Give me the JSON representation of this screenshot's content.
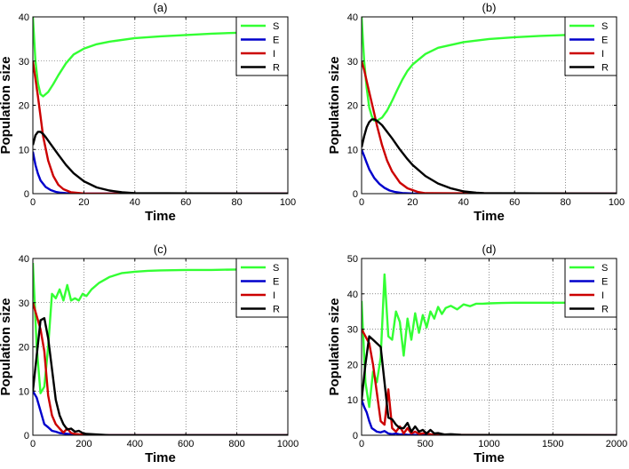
{
  "figure": {
    "background": "#ffffff"
  },
  "series_colors": {
    "S": "#33ff33",
    "E": "#0000cc",
    "I": "#cc0000",
    "R": "#000000"
  },
  "chart_data": [
    {
      "type": "line",
      "title": "(a)",
      "xlabel": "Time",
      "ylabel": "Population size",
      "xlim": [
        0,
        100
      ],
      "ylim": [
        0,
        40
      ],
      "xticks": [
        0,
        20,
        40,
        60,
        80,
        100
      ],
      "yticks": [
        0,
        10,
        20,
        30,
        40
      ],
      "grid": true,
      "legend_position": "top-right",
      "series": [
        {
          "name": "S",
          "x": [
            0,
            1,
            2,
            3,
            4,
            6,
            8,
            10,
            13,
            16,
            20,
            25,
            30,
            40,
            50,
            60,
            70,
            80
          ],
          "y": [
            40,
            30,
            25,
            22.5,
            22,
            23,
            24.8,
            26.8,
            29.5,
            31.5,
            32.8,
            33.8,
            34.4,
            35.2,
            35.6,
            35.9,
            36.2,
            36.4
          ]
        },
        {
          "name": "E",
          "x": [
            0,
            1,
            2,
            3,
            5,
            7,
            9,
            11,
            13,
            16,
            20,
            30,
            100
          ],
          "y": [
            9.5,
            6.5,
            4.5,
            3,
            1.5,
            0.8,
            0.4,
            0.2,
            0.1,
            0.05,
            0,
            0,
            0
          ]
        },
        {
          "name": "I",
          "x": [
            0,
            1,
            2,
            3,
            4,
            6,
            8,
            10,
            12,
            15,
            20,
            25,
            100
          ],
          "y": [
            30,
            26,
            22,
            17.5,
            13,
            7.5,
            4,
            2,
            1,
            0.3,
            0.05,
            0,
            0
          ]
        },
        {
          "name": "R",
          "x": [
            0,
            1,
            2,
            3,
            4,
            5,
            7,
            10,
            13,
            16,
            20,
            25,
            30,
            35,
            40,
            100
          ],
          "y": [
            11,
            13.2,
            14,
            14,
            13.5,
            12.8,
            11.2,
            8.8,
            6.5,
            4.6,
            2.8,
            1.4,
            0.7,
            0.3,
            0.1,
            0
          ]
        }
      ]
    },
    {
      "type": "line",
      "title": "(b)",
      "xlabel": "Time",
      "ylabel": "Population size",
      "xlim": [
        0,
        100
      ],
      "ylim": [
        0,
        40
      ],
      "xticks": [
        0,
        20,
        40,
        60,
        80,
        100
      ],
      "yticks": [
        0,
        10,
        20,
        30,
        40
      ],
      "grid": true,
      "legend_position": "top-right",
      "series": [
        {
          "name": "S",
          "x": [
            0,
            1,
            2,
            3,
            4,
            5,
            6,
            8,
            10,
            12,
            14,
            16,
            18,
            20,
            25,
            30,
            40,
            50,
            60,
            70,
            80,
            100
          ],
          "y": [
            40,
            30,
            24,
            19.5,
            17.5,
            16.5,
            16.5,
            17.2,
            18.8,
            21,
            23.5,
            25.8,
            27.8,
            29.2,
            31.6,
            33,
            34.3,
            35,
            35.4,
            35.7,
            35.9,
            36.2
          ]
        },
        {
          "name": "E",
          "x": [
            0,
            1,
            2,
            3,
            5,
            7,
            9,
            11,
            13,
            16,
            20,
            30,
            100
          ],
          "y": [
            10,
            8.5,
            7,
            5.5,
            3.5,
            2.2,
            1.3,
            0.7,
            0.4,
            0.15,
            0.05,
            0,
            0
          ]
        },
        {
          "name": "I",
          "x": [
            0,
            1,
            2,
            3,
            4,
            5,
            6,
            8,
            10,
            12,
            15,
            18,
            22,
            25,
            100
          ],
          "y": [
            30,
            28,
            25.5,
            23,
            20.5,
            18,
            15.5,
            11,
            7.5,
            5,
            2.5,
            1.2,
            0.4,
            0.1,
            0
          ]
        },
        {
          "name": "R",
          "x": [
            0,
            1,
            2,
            3,
            4,
            5,
            6,
            8,
            10,
            12,
            15,
            18,
            20,
            25,
            30,
            35,
            40,
            45,
            48,
            100
          ],
          "y": [
            10.5,
            13,
            15,
            16.2,
            16.8,
            16.8,
            16.5,
            15.5,
            14,
            12.5,
            10,
            7.8,
            6.5,
            4,
            2.3,
            1.2,
            0.5,
            0.2,
            0.1,
            0
          ]
        }
      ]
    },
    {
      "type": "line",
      "title": "(c)",
      "xlabel": "Time",
      "ylabel": "Population size",
      "xlim": [
        0,
        1000
      ],
      "ylim": [
        0,
        40
      ],
      "xticks": [
        0,
        200,
        400,
        600,
        800,
        1000
      ],
      "yticks": [
        0,
        10,
        20,
        30,
        40
      ],
      "grid": true,
      "legend_position": "top-right",
      "series": [
        {
          "name": "S",
          "x": [
            0,
            15,
            30,
            45,
            60,
            75,
            90,
            105,
            120,
            135,
            150,
            165,
            180,
            195,
            210,
            230,
            260,
            300,
            350,
            400,
            450,
            500,
            600,
            700,
            800
          ],
          "y": [
            39,
            20,
            9.5,
            11,
            20,
            32,
            31,
            33,
            30.5,
            34,
            30.5,
            31,
            30.5,
            32,
            31.5,
            33,
            34.5,
            35.8,
            36.7,
            37,
            37.2,
            37.3,
            37.4,
            37.4,
            37.5
          ]
        },
        {
          "name": "E",
          "x": [
            0,
            15,
            30,
            45,
            60,
            75,
            90,
            105,
            120,
            150,
            180,
            220,
            260,
            300,
            1000
          ],
          "y": [
            10,
            8.5,
            5.5,
            2.5,
            1.8,
            1,
            0.8,
            0.5,
            0.4,
            0.2,
            0.1,
            0.05,
            0,
            0,
            0
          ]
        },
        {
          "name": "I",
          "x": [
            0,
            15,
            30,
            45,
            60,
            75,
            90,
            105,
            120,
            135,
            150,
            165,
            180,
            200,
            250,
            300,
            1000
          ],
          "y": [
            30,
            27,
            24,
            19,
            9,
            4.5,
            2.5,
            1.5,
            0.6,
            1.5,
            0.5,
            0.3,
            0.2,
            0.1,
            0.05,
            0,
            0
          ]
        },
        {
          "name": "R",
          "x": [
            0,
            15,
            30,
            45,
            60,
            75,
            90,
            105,
            120,
            135,
            150,
            165,
            180,
            195,
            210,
            240,
            270,
            300,
            1000
          ],
          "y": [
            10,
            18,
            26,
            26.5,
            22,
            15,
            8,
            4.5,
            2.5,
            1.3,
            1.5,
            0.8,
            1,
            0.5,
            0.3,
            0.2,
            0.1,
            0,
            0
          ]
        }
      ]
    },
    {
      "type": "line",
      "title": "(d)",
      "xlabel": "Time",
      "ylabel": "Population size",
      "xlim": [
        0,
        2000
      ],
      "ylim": [
        0,
        50
      ],
      "xticks": [
        0,
        500,
        1000,
        1500,
        2000
      ],
      "yticks": [
        0,
        10,
        20,
        30,
        40,
        50
      ],
      "grid": true,
      "legend_position": "top-right",
      "series": [
        {
          "name": "S",
          "x": [
            0,
            30,
            60,
            90,
            120,
            150,
            180,
            210,
            240,
            270,
            300,
            330,
            360,
            390,
            420,
            450,
            480,
            510,
            540,
            570,
            600,
            630,
            660,
            700,
            750,
            800,
            850,
            900,
            950,
            1000,
            1100,
            1200,
            1400,
            1600,
            1800
          ],
          "y": [
            38,
            15,
            8,
            18,
            15,
            22,
            45.5,
            28,
            27,
            35,
            32,
            22.5,
            33,
            27,
            34.5,
            29,
            34,
            30.5,
            35,
            33,
            36.3,
            34.3,
            36,
            36.6,
            35.6,
            37,
            36.5,
            37.2,
            37.2,
            37.3,
            37.4,
            37.5,
            37.5,
            37.5,
            37.5
          ]
        },
        {
          "name": "E",
          "x": [
            0,
            20,
            40,
            60,
            80,
            100,
            120,
            150,
            180,
            210,
            240,
            270,
            300,
            330,
            360,
            400,
            450,
            500,
            600,
            2000
          ],
          "y": [
            10,
            8,
            6.5,
            4,
            2,
            1.5,
            1,
            0.8,
            1.2,
            0.5,
            0.3,
            0.5,
            0.2,
            0.3,
            0.1,
            0.1,
            0.05,
            0,
            0,
            0
          ]
        },
        {
          "name": "I",
          "x": [
            0,
            30,
            60,
            90,
            120,
            150,
            180,
            210,
            240,
            270,
            300,
            330,
            360,
            390,
            420,
            450,
            500,
            550,
            600,
            700,
            2000
          ],
          "y": [
            30,
            28,
            26,
            20,
            12,
            4,
            3,
            13,
            2,
            1,
            2.5,
            0.5,
            2,
            0.5,
            1,
            0.4,
            0.6,
            0.2,
            0.3,
            0.1,
            0
          ]
        },
        {
          "name": "R",
          "x": [
            0,
            30,
            60,
            90,
            120,
            150,
            180,
            210,
            240,
            270,
            300,
            330,
            360,
            390,
            420,
            450,
            480,
            510,
            540,
            570,
            600,
            650,
            700,
            780,
            2000
          ],
          "y": [
            10,
            20,
            28,
            27,
            26,
            25,
            15,
            5,
            4.5,
            3,
            2,
            2,
            3.5,
            1,
            2.5,
            1,
            1.5,
            0.5,
            1.5,
            0.5,
            0.6,
            0.2,
            0.3,
            0.1,
            0
          ]
        }
      ]
    }
  ]
}
